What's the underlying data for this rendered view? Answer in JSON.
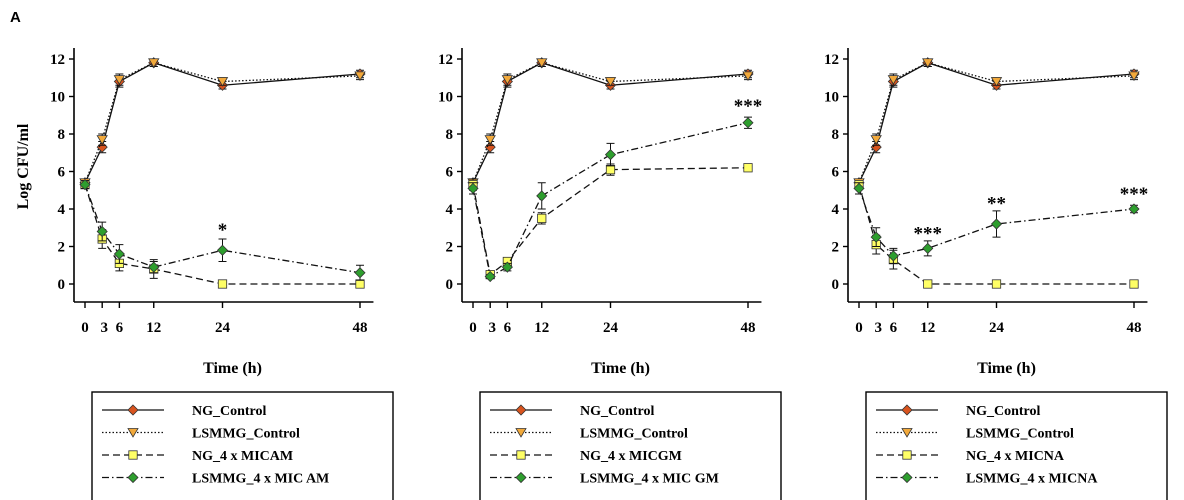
{
  "figure": {
    "panel_label": "A"
  },
  "chart_data": [
    {
      "type": "line",
      "xlabel": "Time (h)",
      "ylabel": "Log CFU/ml",
      "x_ticks": [
        0,
        3,
        6,
        12,
        24,
        48
      ],
      "y_ticks": [
        0,
        2,
        4,
        6,
        8,
        10,
        12
      ],
      "xlim": [
        0,
        50
      ],
      "ylim": [
        -0.5,
        12.5
      ],
      "x": [
        0,
        3,
        6,
        12,
        24,
        48
      ],
      "series": [
        {
          "name": "NG_Control",
          "values": [
            5.4,
            7.3,
            10.8,
            11.8,
            10.6,
            11.2
          ],
          "errors": [
            0.2,
            0.3,
            0.3,
            0.2,
            0.2,
            0.2
          ],
          "marker": "diamond",
          "fill": "#d9541e",
          "dash": "solid"
        },
        {
          "name": "LSMMG_Control",
          "values": [
            5.4,
            7.7,
            10.9,
            11.8,
            10.8,
            11.1
          ],
          "errors": [
            0.2,
            0.3,
            0.3,
            0.2,
            0.2,
            0.2
          ],
          "marker": "triangle-down",
          "fill": "#f2a93b",
          "dash": "dotted"
        },
        {
          "name": "NG_4xMICAM",
          "values": [
            5.3,
            2.4,
            1.1,
            0.8,
            0.0,
            0.0
          ],
          "errors": [
            0.2,
            0.5,
            0.4,
            0.5,
            0.0,
            0.0
          ],
          "marker": "square",
          "fill": "#ffff66",
          "dash": "dashed"
        },
        {
          "name": "LSMMG_4xMICAM",
          "values": [
            5.3,
            2.8,
            1.6,
            0.9,
            1.8,
            0.6
          ],
          "errors": [
            0.2,
            0.5,
            0.5,
            0.3,
            0.6,
            0.4
          ],
          "marker": "diamond",
          "fill": "#2e9e2e",
          "dash": "dashdot"
        }
      ],
      "annotations": [
        {
          "x": 24,
          "y": 3.0,
          "text": "*"
        }
      ],
      "legend": [
        "NG_Control",
        "LSMMG_Control",
        "NG_4 x MICAM",
        "LSMMG_4 x MIC AM"
      ]
    },
    {
      "type": "line",
      "xlabel": "Time (h)",
      "ylabel": "",
      "x_ticks": [
        0,
        3,
        6,
        12,
        24,
        48
      ],
      "y_ticks": [
        0,
        2,
        4,
        6,
        8,
        10,
        12
      ],
      "xlim": [
        0,
        50
      ],
      "ylim": [
        -0.5,
        12.5
      ],
      "x": [
        0,
        3,
        6,
        12,
        24,
        48
      ],
      "series": [
        {
          "name": "NG_Control",
          "values": [
            5.4,
            7.3,
            10.8,
            11.8,
            10.6,
            11.2
          ],
          "errors": [
            0.2,
            0.3,
            0.3,
            0.2,
            0.2,
            0.2
          ],
          "marker": "diamond",
          "fill": "#d9541e",
          "dash": "solid"
        },
        {
          "name": "LSMMG_Control",
          "values": [
            5.4,
            7.7,
            10.9,
            11.8,
            10.8,
            11.1
          ],
          "errors": [
            0.2,
            0.3,
            0.3,
            0.2,
            0.2,
            0.2
          ],
          "marker": "triangle-down",
          "fill": "#f2a93b",
          "dash": "dotted"
        },
        {
          "name": "NG_4xMICGM",
          "values": [
            5.3,
            0.5,
            1.2,
            3.5,
            6.1,
            6.2
          ],
          "errors": [
            0.3,
            0.1,
            0.2,
            0.3,
            0.3,
            0.1
          ],
          "marker": "square",
          "fill": "#ffff66",
          "dash": "dashed"
        },
        {
          "name": "LSMMG_4xMICGM",
          "values": [
            5.1,
            0.4,
            0.9,
            4.7,
            6.9,
            8.6
          ],
          "errors": [
            0.3,
            0.1,
            0.2,
            0.7,
            0.6,
            0.3
          ],
          "marker": "diamond",
          "fill": "#2e9e2e",
          "dash": "dashdot"
        }
      ],
      "annotations": [
        {
          "x": 48,
          "y": 9.6,
          "text": "***"
        }
      ],
      "legend": [
        "NG_Control",
        "LSMMG_Control",
        "NG_4 x MICGM",
        "LSMMG_4 x MIC GM"
      ]
    },
    {
      "type": "line",
      "xlabel": "Time (h)",
      "ylabel": "",
      "x_ticks": [
        0,
        3,
        6,
        12,
        24,
        48
      ],
      "y_ticks": [
        0,
        2,
        4,
        6,
        8,
        10,
        12
      ],
      "xlim": [
        0,
        50
      ],
      "ylim": [
        -0.5,
        12.5
      ],
      "x": [
        0,
        3,
        6,
        12,
        24,
        48
      ],
      "series": [
        {
          "name": "NG_Control",
          "values": [
            5.4,
            7.3,
            10.8,
            11.8,
            10.6,
            11.2
          ],
          "errors": [
            0.2,
            0.3,
            0.3,
            0.2,
            0.2,
            0.2
          ],
          "marker": "diamond",
          "fill": "#d9541e",
          "dash": "solid"
        },
        {
          "name": "LSMMG_Control",
          "values": [
            5.4,
            7.7,
            10.9,
            11.8,
            10.8,
            11.1
          ],
          "errors": [
            0.2,
            0.3,
            0.3,
            0.2,
            0.2,
            0.2
          ],
          "marker": "triangle-down",
          "fill": "#f2a93b",
          "dash": "dotted"
        },
        {
          "name": "NG_4xMICNA",
          "values": [
            5.3,
            2.1,
            1.3,
            0.0,
            0.0,
            0.0
          ],
          "errors": [
            0.2,
            0.5,
            0.5,
            0.0,
            0.0,
            0.0
          ],
          "marker": "square",
          "fill": "#ffff66",
          "dash": "dashed"
        },
        {
          "name": "LSMMG_4xMICNA",
          "values": [
            5.1,
            2.5,
            1.5,
            1.9,
            3.2,
            4.0
          ],
          "errors": [
            0.3,
            0.5,
            0.4,
            0.4,
            0.7,
            0.2
          ],
          "marker": "diamond",
          "fill": "#2e9e2e",
          "dash": "dashdot"
        }
      ],
      "annotations": [
        {
          "x": 12,
          "y": 2.8,
          "text": "***"
        },
        {
          "x": 24,
          "y": 4.4,
          "text": "**"
        },
        {
          "x": 48,
          "y": 4.9,
          "text": "***"
        }
      ],
      "legend": [
        "NG_Control",
        "LSMMG_Control",
        "NG_4 x MICNA",
        "LSMMG_4 x MICNA"
      ]
    }
  ]
}
